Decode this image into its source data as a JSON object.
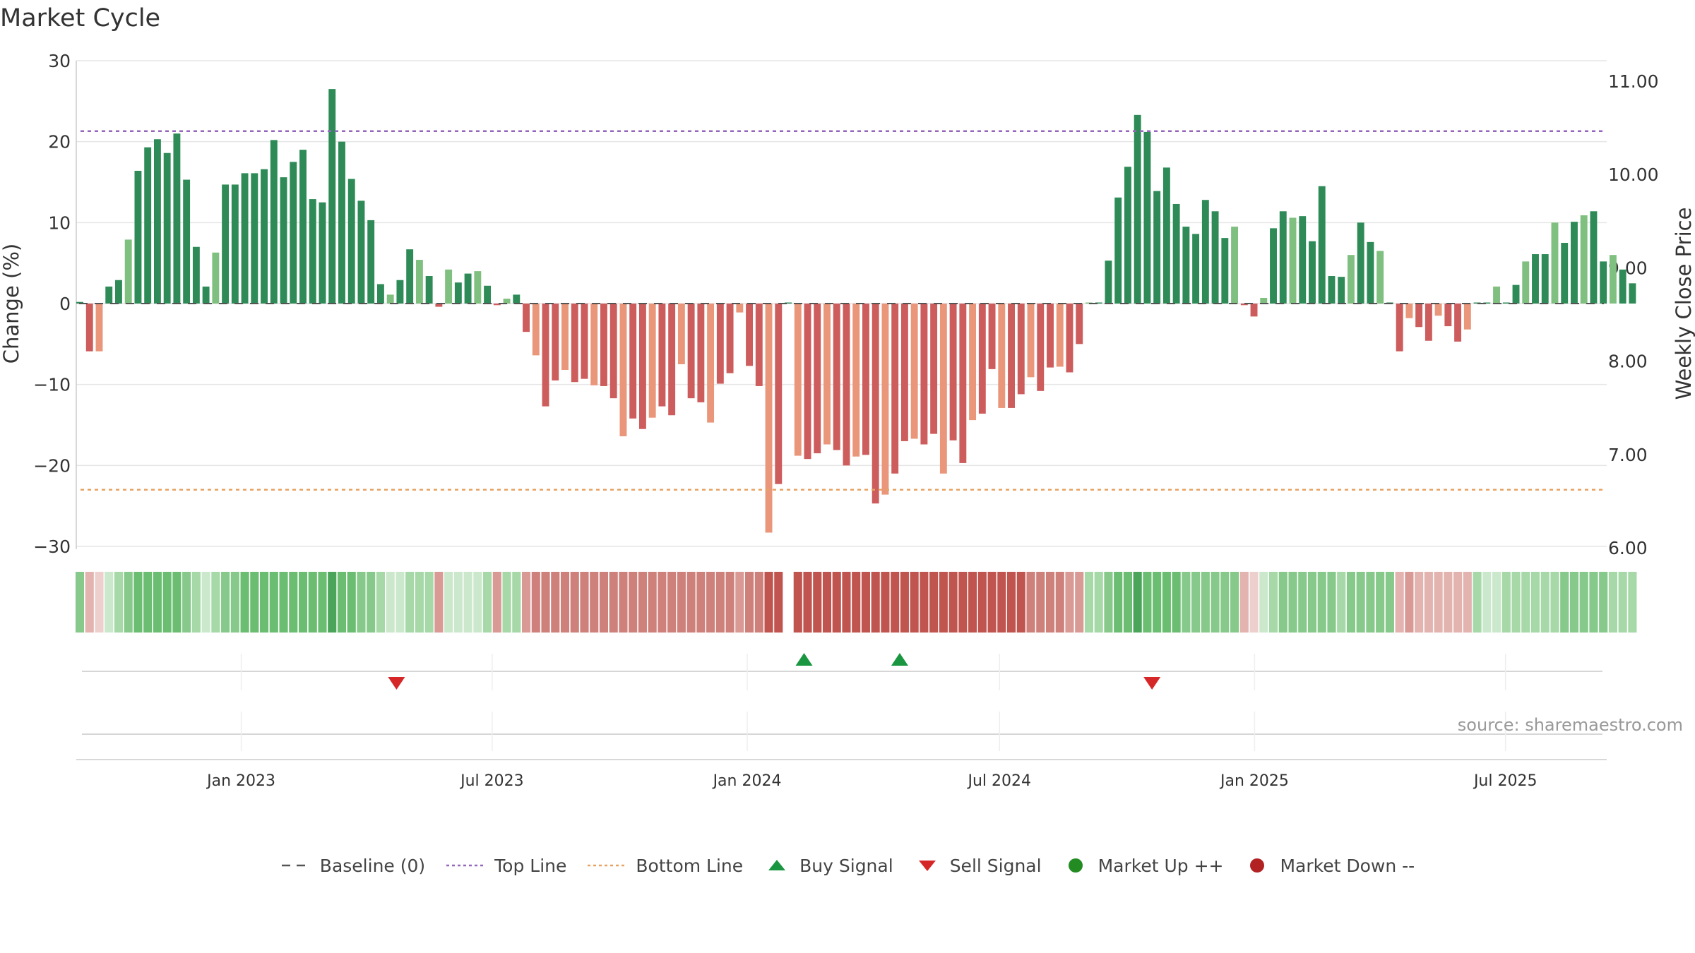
{
  "title": "Market Cycle",
  "source": "source: sharemaestro.com",
  "colors": {
    "pos_dark": "#2e8b57",
    "pos_light": "#7fbf7f",
    "neg_dark": "#cd5c5c",
    "neg_light": "#e9967a",
    "top_line": "#9467bd",
    "bottom_line": "#e8a262",
    "buy": "#1a9641",
    "sell": "#d62728",
    "market_up": "#228b22",
    "market_down": "#b22222"
  },
  "legend": [
    {
      "label": "Baseline (0)",
      "icon": "dash-line-icon"
    },
    {
      "label": "Top Line",
      "icon": "purple-dotted-line-icon"
    },
    {
      "label": "Bottom Line",
      "icon": "orange-dotted-line-icon"
    },
    {
      "label": "Buy Signal",
      "icon": "green-triangle-up-icon"
    },
    {
      "label": "Sell Signal",
      "icon": "red-triangle-down-icon"
    },
    {
      "label": "Market Up ++",
      "icon": "green-dot-icon"
    },
    {
      "label": "Market Down --",
      "icon": "red-dot-icon"
    }
  ],
  "chart_data": {
    "type": "bar",
    "title": "Market Cycle",
    "ylabel": "Change (%)",
    "y2label": "Weekly Close Price",
    "ylim": [
      -30,
      30
    ],
    "y2lim": [
      6.0,
      11.0
    ],
    "yticks": [
      "30",
      "20",
      "10",
      "0",
      "−10",
      "−20",
      "−30"
    ],
    "y2ticks": [
      "11.00",
      "10.00",
      "9.00",
      "8.00",
      "7.00",
      "6.00"
    ],
    "xlim": [
      "2022-09-04",
      "2025-09-12"
    ],
    "xticks": [
      {
        "label": "Jan 2023",
        "date": "2023-01-01"
      },
      {
        "label": "Jul 2023",
        "date": "2023-07-01"
      },
      {
        "label": "Jan 2024",
        "date": "2024-01-01"
      },
      {
        "label": "Jul 2024",
        "date": "2024-07-01"
      },
      {
        "label": "Jan 2025",
        "date": "2025-01-01"
      },
      {
        "label": "Jul 2025",
        "date": "2025-07-01"
      }
    ],
    "week_start": "2022-09-04",
    "values": [
      0.2,
      -5.9,
      -5.9,
      2.1,
      2.9,
      7.9,
      16.4,
      19.3,
      20.3,
      18.6,
      21.0,
      15.3,
      7.0,
      2.1,
      6.3,
      14.7,
      14.7,
      16.1,
      16.1,
      16.6,
      20.2,
      15.6,
      17.5,
      19.0,
      12.9,
      12.5,
      26.5,
      20.0,
      15.4,
      12.7,
      10.3,
      2.4,
      1.1,
      2.9,
      6.7,
      5.4,
      3.4,
      -0.4,
      4.2,
      2.6,
      3.7,
      4.0,
      2.2,
      -0.2,
      0.6,
      1.1,
      -3.5,
      -6.4,
      -12.7,
      -9.5,
      -8.2,
      -9.7,
      -9.3,
      -10.1,
      -10.2,
      -11.7,
      -16.4,
      -14.2,
      -15.5,
      -14.1,
      -12.7,
      -13.8,
      -7.5,
      -11.7,
      -12.2,
      -14.7,
      -9.9,
      -8.6,
      -1.1,
      -7.7,
      -10.2,
      -28.3,
      -22.3,
      0,
      -18.8,
      -19.2,
      -18.5,
      -17.4,
      -18.1,
      -20.0,
      -18.9,
      -18.7,
      -24.7,
      -23.6,
      -21.0,
      -17.0,
      -16.7,
      -17.4,
      -16.1,
      -21.0,
      -16.9,
      -19.7,
      -14.4,
      -13.6,
      -8.1,
      -12.9,
      -12.9,
      -11.2,
      -9.1,
      -10.8,
      -7.9,
      -7.8,
      -8.5,
      -5.0,
      0.1,
      0.1,
      5.3,
      13.1,
      16.9,
      23.3,
      21.2,
      13.9,
      16.8,
      12.3,
      9.5,
      8.6,
      12.8,
      11.4,
      8.1,
      9.5,
      -0.2,
      -1.6,
      0.7,
      9.3,
      11.4,
      10.6,
      10.8,
      7.7,
      14.5,
      3.4,
      3.3,
      6.0,
      10.0,
      7.6,
      6.5,
      0.1,
      -5.9,
      -1.8,
      -2.9,
      -4.6,
      -1.5,
      -2.8,
      -4.7,
      -3.2,
      0.1,
      0.1,
      2.1,
      0.1,
      2.3,
      5.2,
      6.1,
      6.1,
      10.0,
      7.5,
      10.1,
      10.9,
      11.4,
      5.2,
      6.0,
      4.2,
      2.5
    ],
    "shade": [
      2,
      1,
      0,
      0,
      1,
      2,
      3,
      3,
      3,
      3,
      3,
      2,
      1,
      0,
      1,
      2,
      2,
      3,
      3,
      3,
      3,
      3,
      3,
      3,
      3,
      3,
      4,
      3,
      3,
      2,
      2,
      1,
      0,
      0,
      1,
      1,
      1,
      2,
      0,
      0,
      0,
      0,
      1,
      2,
      1,
      1,
      2,
      3,
      3,
      3,
      3,
      3,
      3,
      3,
      3,
      3,
      3,
      3,
      3,
      3,
      3,
      3,
      3,
      3,
      3,
      3,
      3,
      3,
      2,
      3,
      3,
      4,
      4,
      4,
      4,
      4,
      4,
      4,
      4,
      4,
      4,
      4,
      4,
      4,
      4,
      4,
      4,
      4,
      4,
      4,
      4,
      4,
      4,
      4,
      4,
      4,
      4,
      4,
      3,
      3,
      3,
      3,
      2,
      2,
      1,
      1,
      2,
      3,
      3,
      4,
      3,
      3,
      3,
      3,
      2,
      2,
      2,
      2,
      2,
      2,
      1,
      0,
      0,
      1,
      2,
      2,
      2,
      2,
      2,
      2,
      1,
      2,
      2,
      2,
      2,
      2,
      1,
      2,
      1,
      1,
      1,
      1,
      1,
      1,
      1,
      0,
      0,
      1,
      1,
      1,
      1,
      1,
      1,
      2,
      2,
      2,
      2,
      2,
      1,
      1,
      1,
      0
    ],
    "top_line": 21.3,
    "bottom_line": -23.0,
    "signals": [
      {
        "type": "sell",
        "date": "2023-04-23"
      },
      {
        "type": "buy",
        "date": "2024-02-11"
      },
      {
        "type": "buy",
        "date": "2024-04-20"
      },
      {
        "type": "sell",
        "date": "2024-10-19"
      }
    ]
  }
}
